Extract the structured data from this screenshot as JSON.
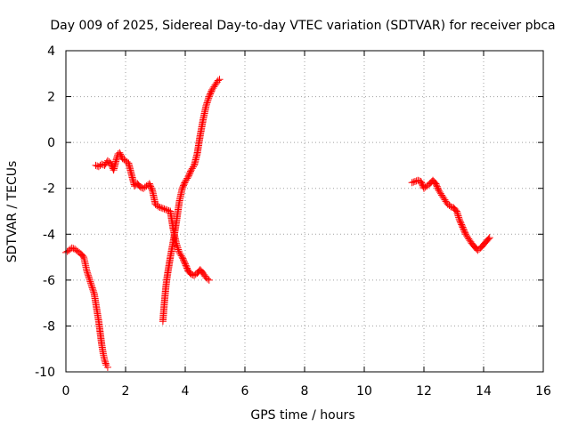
{
  "chart_data": {
    "type": "scatter",
    "title": "Day 009 of 2025, Sidereal Day-to-day VTEC variation (SDTVAR) for receiver pbca",
    "xlabel": "GPS time / hours",
    "ylabel": "SDTVAR / TECUs",
    "xlim": [
      0,
      16
    ],
    "ylim": [
      -10,
      4
    ],
    "xticks": [
      0,
      2,
      4,
      6,
      8,
      10,
      12,
      14,
      16
    ],
    "yticks": [
      -10,
      -8,
      -6,
      -4,
      -2,
      0,
      2,
      4
    ],
    "xtick_labels": [
      "0",
      "2",
      "4",
      "6",
      "8",
      "10",
      "12",
      "14",
      "16"
    ],
    "ytick_labels": [
      "-10",
      "-8",
      "-6",
      "-4",
      "-2",
      "0",
      "2",
      "4"
    ],
    "grid": true,
    "marker": "+",
    "color": "#ff0000",
    "series": [
      {
        "name": "track-1",
        "x": [
          0.0,
          0.1,
          0.2,
          0.3,
          0.4,
          0.5,
          0.6,
          0.65,
          0.7,
          0.75,
          0.8,
          0.85,
          0.9,
          0.95,
          1.0,
          1.05,
          1.1,
          1.15,
          1.2,
          1.25,
          1.3,
          1.35,
          1.4
        ],
        "y": [
          -4.8,
          -4.7,
          -4.6,
          -4.65,
          -4.75,
          -4.85,
          -5.0,
          -5.3,
          -5.6,
          -5.8,
          -6.0,
          -6.2,
          -6.4,
          -6.6,
          -7.0,
          -7.4,
          -7.8,
          -8.3,
          -8.8,
          -9.2,
          -9.5,
          -9.7,
          -9.8
        ]
      },
      {
        "name": "track-2",
        "x": [
          1.0,
          1.1,
          1.2,
          1.3,
          1.4,
          1.5,
          1.6,
          1.7,
          1.75,
          1.8,
          1.9,
          2.0,
          2.1,
          2.2,
          2.3,
          2.4,
          2.5,
          2.6,
          2.7,
          2.8,
          2.9,
          3.0,
          3.1,
          3.2,
          3.3,
          3.4,
          3.5,
          3.6,
          3.7,
          3.8,
          3.9,
          4.0,
          4.1,
          4.2,
          4.3,
          4.4,
          4.5,
          4.6,
          4.7,
          4.8
        ],
        "y": [
          -1.0,
          -1.05,
          -0.95,
          -1.0,
          -0.8,
          -0.9,
          -1.2,
          -0.7,
          -0.5,
          -0.45,
          -0.7,
          -0.8,
          -0.9,
          -1.4,
          -1.9,
          -1.8,
          -1.95,
          -2.0,
          -1.9,
          -1.8,
          -2.1,
          -2.7,
          -2.8,
          -2.85,
          -2.9,
          -2.95,
          -3.0,
          -3.8,
          -4.4,
          -4.8,
          -5.0,
          -5.3,
          -5.6,
          -5.75,
          -5.8,
          -5.7,
          -5.55,
          -5.7,
          -5.9,
          -6.0
        ]
      },
      {
        "name": "track-3",
        "x": [
          3.25,
          3.3,
          3.35,
          3.4,
          3.5,
          3.6,
          3.7,
          3.8,
          3.9,
          4.0,
          4.1,
          4.2,
          4.3,
          4.4,
          4.5,
          4.6,
          4.7,
          4.8,
          4.9,
          5.0,
          5.1,
          5.15
        ],
        "y": [
          -7.8,
          -7.0,
          -6.3,
          -5.8,
          -5.0,
          -4.3,
          -3.5,
          -2.6,
          -2.0,
          -1.7,
          -1.5,
          -1.2,
          -1.0,
          -0.5,
          0.3,
          1.0,
          1.6,
          2.0,
          2.3,
          2.5,
          2.7,
          2.75
        ]
      },
      {
        "name": "track-4",
        "x": [
          11.6,
          11.7,
          11.8,
          11.9,
          12.0,
          12.1,
          12.2,
          12.3,
          12.4,
          12.5,
          12.6,
          12.7,
          12.8,
          12.9,
          13.0,
          13.1,
          13.2,
          13.3,
          13.4,
          13.5,
          13.6,
          13.7,
          13.8,
          13.9,
          14.0,
          14.1,
          14.2
        ],
        "y": [
          -1.75,
          -1.7,
          -1.65,
          -1.7,
          -2.0,
          -1.9,
          -1.8,
          -1.65,
          -1.8,
          -2.1,
          -2.3,
          -2.5,
          -2.7,
          -2.8,
          -2.85,
          -3.0,
          -3.4,
          -3.7,
          -4.0,
          -4.2,
          -4.4,
          -4.55,
          -4.7,
          -4.6,
          -4.45,
          -4.3,
          -4.15
        ]
      }
    ]
  }
}
